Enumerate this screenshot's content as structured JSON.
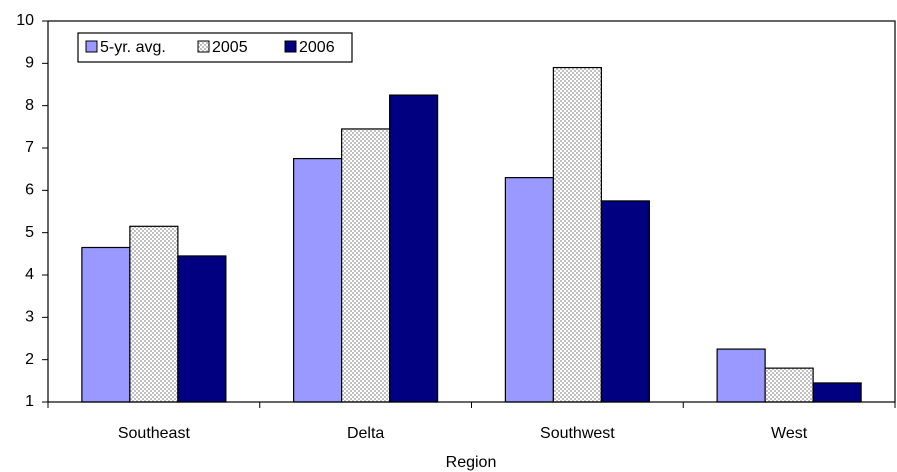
{
  "chart_data": {
    "type": "bar",
    "x_label": "Region",
    "categories": [
      "Southeast",
      "Delta",
      "Southwest",
      "West"
    ],
    "series": [
      {
        "name": "5-yr. avg.",
        "color": "#9999ff",
        "values": [
          4.65,
          6.75,
          6.3,
          2.25
        ]
      },
      {
        "name": "2005",
        "color": "#c0c0c0",
        "pattern": "checker",
        "values": [
          5.15,
          7.45,
          8.9,
          1.8
        ]
      },
      {
        "name": "2006",
        "color": "#000080",
        "values": [
          4.45,
          8.25,
          5.75,
          1.45
        ]
      }
    ],
    "ylim": [
      1,
      10
    ],
    "yticks": [
      1,
      2,
      3,
      4,
      5,
      6,
      7,
      8,
      9,
      10
    ],
    "grid": false,
    "legend": "top-left"
  }
}
